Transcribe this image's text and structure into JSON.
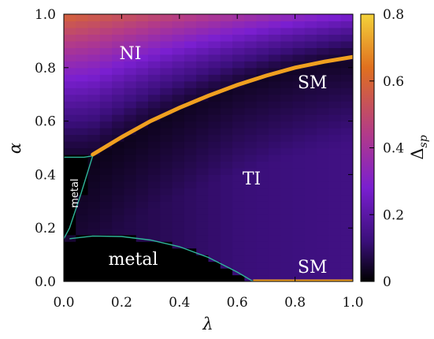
{
  "chart_data": {
    "type": "heatmap",
    "xlabel": "λ",
    "ylabel": "α",
    "xlim": [
      0.0,
      1.0
    ],
    "ylim": [
      0.0,
      1.0
    ],
    "x_ticks": [
      "0.0",
      "0.2",
      "0.4",
      "0.6",
      "0.8",
      "1.0"
    ],
    "y_ticks": [
      "0.0",
      "0.2",
      "0.4",
      "0.6",
      "0.8",
      "1.0"
    ],
    "colorbar": {
      "label_main": "Δ",
      "label_sub": "sp",
      "range": [
        0,
        0.8
      ],
      "ticks": [
        "0",
        "0.2",
        "0.4",
        "0.6",
        "0.8"
      ],
      "colormap": [
        "#000000",
        "#3a0f7a",
        "#7a1fd0",
        "#b23a8a",
        "#e0701f",
        "#f4d23a"
      ]
    },
    "regions": [
      {
        "label": "NI",
        "lambda": 0.23,
        "alpha": 0.85
      },
      {
        "label": "SM",
        "lambda": 0.86,
        "alpha": 0.74
      },
      {
        "label": "TI",
        "lambda": 0.65,
        "alpha": 0.38
      },
      {
        "label": "metal",
        "lambda": 0.24,
        "alpha": 0.08
      },
      {
        "label": "SM",
        "lambda": 0.86,
        "alpha": 0.05
      },
      {
        "label": "metal",
        "lambda": 0.04,
        "alpha": 0.33,
        "vertical": true
      }
    ],
    "boundaries": {
      "sm_line_upper": {
        "color": "#f0a020",
        "points": [
          [
            0.1,
            0.475
          ],
          [
            0.2,
            0.54
          ],
          [
            0.3,
            0.6
          ],
          [
            0.4,
            0.65
          ],
          [
            0.5,
            0.695
          ],
          [
            0.6,
            0.735
          ],
          [
            0.7,
            0.77
          ],
          [
            0.8,
            0.8
          ],
          [
            0.9,
            0.822
          ],
          [
            1.0,
            0.84
          ]
        ]
      },
      "sm_line_lower": {
        "color": "#f0a020",
        "points": [
          [
            0.655,
            0.0
          ],
          [
            1.0,
            0.0
          ]
        ]
      },
      "metal_lower": {
        "color": "#2fb59a",
        "points": [
          [
            0.02,
            0.16
          ],
          [
            0.1,
            0.17
          ],
          [
            0.2,
            0.168
          ],
          [
            0.3,
            0.155
          ],
          [
            0.4,
            0.13
          ],
          [
            0.5,
            0.09
          ],
          [
            0.6,
            0.035
          ],
          [
            0.655,
            0.0
          ]
        ]
      },
      "metal_left": {
        "color": "#2fb59a",
        "points": [
          [
            0.0,
            0.16
          ],
          [
            0.02,
            0.2
          ],
          [
            0.06,
            0.33
          ],
          [
            0.1,
            0.47
          ],
          [
            0.07,
            0.465
          ],
          [
            0.0,
            0.465
          ]
        ]
      }
    }
  }
}
